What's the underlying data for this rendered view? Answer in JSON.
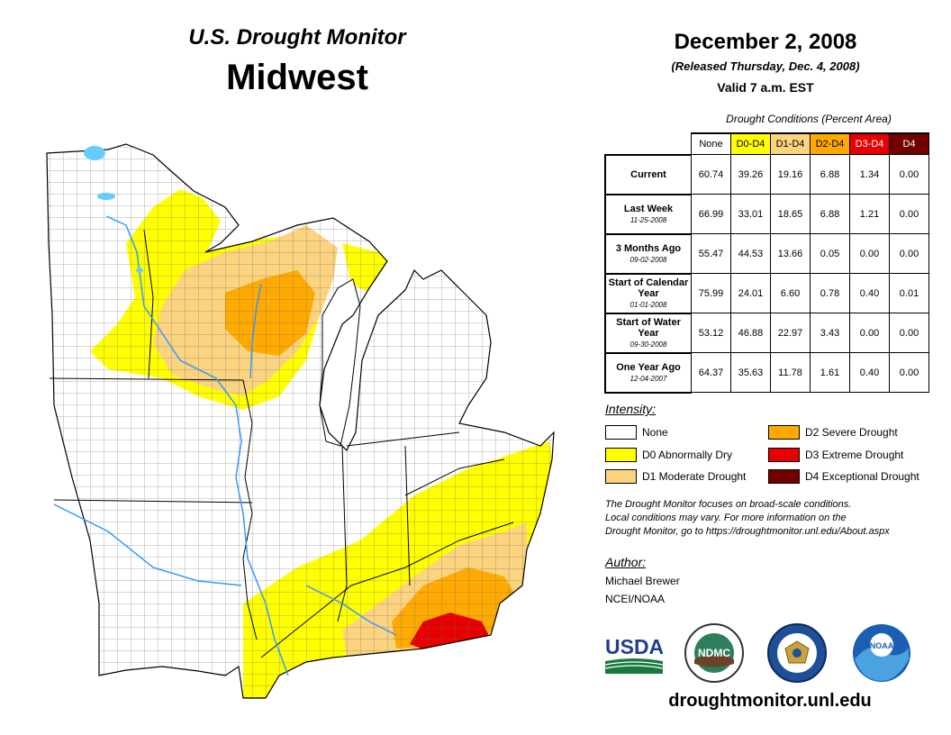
{
  "header": {
    "title": "U.S. Drought Monitor",
    "region": "Midwest",
    "date": "December 2, 2008",
    "released": "(Released Thursday, Dec. 4, 2008)",
    "valid": "Valid 7 a.m. EST"
  },
  "stats": {
    "caption": "Drought Conditions (Percent Area)",
    "columns": [
      "None",
      "D0-D4",
      "D1-D4",
      "D2-D4",
      "D3-D4",
      "D4"
    ],
    "rows": [
      {
        "label": "Current",
        "date": "",
        "values": [
          "60.74",
          "39.26",
          "19.16",
          "6.88",
          "1.34",
          "0.00"
        ]
      },
      {
        "label": "Last Week",
        "date": "11-25-2008",
        "values": [
          "66.99",
          "33.01",
          "18.65",
          "6.88",
          "1.21",
          "0.00"
        ]
      },
      {
        "label": "3 Months Ago",
        "date": "09-02-2008",
        "values": [
          "55.47",
          "44.53",
          "13.66",
          "0.05",
          "0.00",
          "0.00"
        ]
      },
      {
        "label": "Start of Calendar Year",
        "date": "01-01-2008",
        "values": [
          "75.99",
          "24.01",
          "6.60",
          "0.78",
          "0.40",
          "0.01"
        ]
      },
      {
        "label": "Start of Water Year",
        "date": "09-30-2008",
        "values": [
          "53.12",
          "46.88",
          "22.97",
          "3.43",
          "0.00",
          "0.00"
        ]
      },
      {
        "label": "One Year Ago",
        "date": "12-04-2007",
        "values": [
          "64.37",
          "35.63",
          "11.78",
          "1.61",
          "0.40",
          "0.00"
        ]
      }
    ]
  },
  "legend": {
    "heading": "Intensity:",
    "items": [
      {
        "label": "None",
        "color": "#ffffff"
      },
      {
        "label": "D0 Abnormally Dry",
        "color": "#ffff00"
      },
      {
        "label": "D1 Moderate Drought",
        "color": "#fcd37f"
      },
      {
        "label": "D2 Severe Drought",
        "color": "#ffaa00"
      },
      {
        "label": "D3 Extreme Drought",
        "color": "#e60000"
      },
      {
        "label": "D4 Exceptional Drought",
        "color": "#730000"
      }
    ]
  },
  "note": {
    "line1": "The Drought Monitor focuses on broad-scale conditions.",
    "line2": "Local conditions may vary. For more information on the",
    "line3": "Drought Monitor, go to https://droughtmonitor.unl.edu/About.aspx"
  },
  "author": {
    "heading": "Author:",
    "name": "Michael Brewer",
    "org": "NCEI/NOAA"
  },
  "logos": {
    "usda": "USDA",
    "ndmc": "NDMC",
    "noaa": "NOAA"
  },
  "website": "droughtmonitor.unl.edu"
}
